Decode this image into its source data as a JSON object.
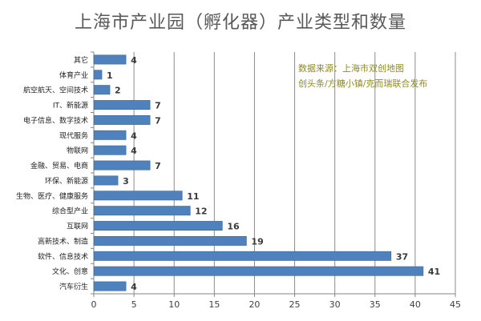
{
  "chart_data": {
    "type": "bar",
    "orientation": "horizontal",
    "title": "上海市产业园（孵化器）产业类型和数量",
    "annotation_lines": [
      "数据来源：上海市双创地图",
      "创头条/方糖小镇/克而瑞联合发布"
    ],
    "categories": [
      "其它",
      "体育产业",
      "航空航天、空间技术",
      "IT、新能源",
      "电子信息、数字技术",
      "现代服务",
      "物联网",
      "金融、贸易、电商",
      "环保、新能源",
      "生物、医疗、健康服务",
      "综合型产业",
      "互联网",
      "高新技术、制造",
      "软件、信息技术",
      "文化、创意",
      "汽车衍生"
    ],
    "values": [
      4,
      1,
      2,
      7,
      7,
      4,
      4,
      7,
      3,
      11,
      12,
      16,
      19,
      37,
      41,
      4
    ],
    "xlim": [
      0,
      45
    ],
    "xticks": [
      0,
      5,
      10,
      15,
      20,
      25,
      30,
      35,
      40,
      45
    ],
    "grid": true,
    "data_labels": true,
    "bar_color": "#4f81bd"
  }
}
